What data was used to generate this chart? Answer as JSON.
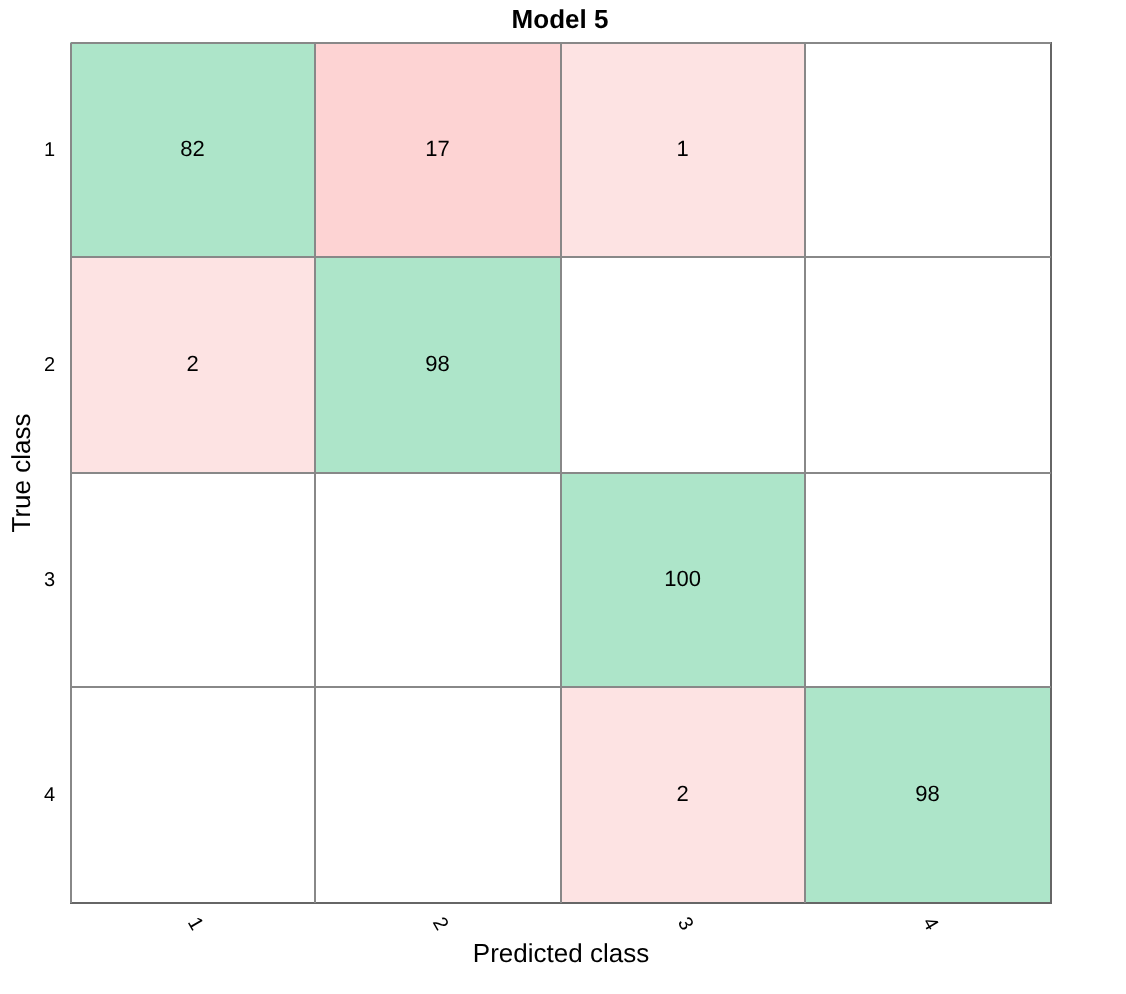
{
  "chart_data": {
    "type": "heatmap",
    "title": "Model 5",
    "xlabel": "Predicted class",
    "ylabel": "True class",
    "categories": [
      "1",
      "2",
      "3",
      "4"
    ],
    "y_categories": [
      "1",
      "2",
      "3",
      "4"
    ],
    "cells": [
      [
        82,
        17,
        1,
        null
      ],
      [
        2,
        98,
        null,
        null
      ],
      [
        null,
        null,
        100,
        null
      ],
      [
        null,
        null,
        2,
        98
      ]
    ],
    "colors": [
      [
        "#ade5c9",
        "#fdd3d3",
        "#fde3e3",
        null
      ],
      [
        "#fde3e3",
        "#ade5c9",
        null,
        null
      ],
      [
        null,
        null,
        "#ade5c9",
        null
      ],
      [
        null,
        null,
        "#fde3e3",
        "#ade5c9"
      ]
    ],
    "data_labels": true,
    "grid": true
  }
}
